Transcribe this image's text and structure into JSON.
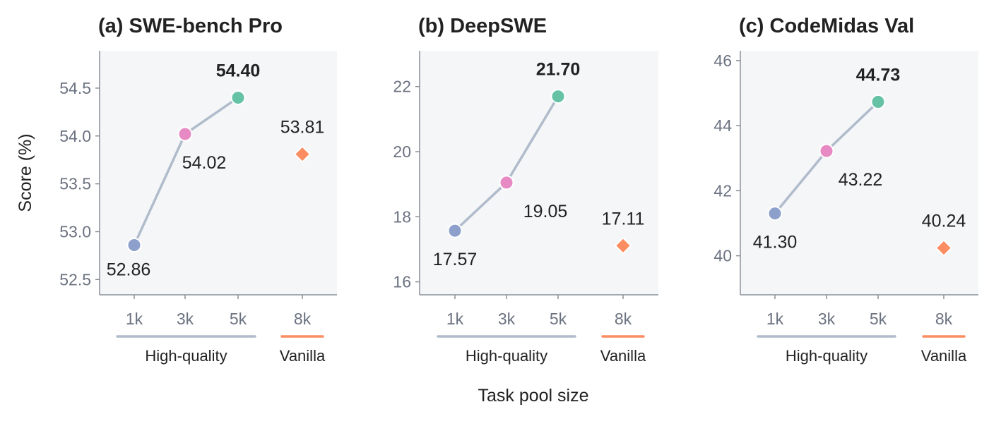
{
  "figure": {
    "ylabel": "Score (%)",
    "xlabel": "Task pool size"
  },
  "group_labels": {
    "high_quality": "High-quality",
    "vanilla": "Vanilla"
  },
  "colors": {
    "panel_bg": "#F5F6F8",
    "axis": "#8A9099",
    "tick_text": "#6B7280",
    "line": "#B0BCCB",
    "point_1k": "#8DA0CB",
    "point_3k": "#E78AC3",
    "point_5k": "#66C2A5",
    "vanilla": "#FC8D62",
    "bracket_hq": "#B0BCCB",
    "bracket_vanilla": "#FC8D62"
  },
  "chart_data": [
    {
      "type": "line",
      "title": "(a) SWE-bench Pro",
      "categories": [
        "1k",
        "3k",
        "5k",
        "8k"
      ],
      "series": [
        {
          "name": "High-quality",
          "x": [
            "1k",
            "3k",
            "5k"
          ],
          "values": [
            52.86,
            54.02,
            54.4
          ],
          "labels": [
            "52.86",
            "54.02",
            "54.40"
          ]
        },
        {
          "name": "Vanilla",
          "x": [
            "8k"
          ],
          "values": [
            53.81
          ],
          "labels": [
            "53.81"
          ]
        }
      ],
      "yticks": [
        52.5,
        53.0,
        53.5,
        54.0,
        54.5
      ],
      "ytick_labels": [
        "52.5",
        "53.0",
        "53.5",
        "54.0",
        "54.5"
      ],
      "ylim": [
        52.34,
        54.89
      ],
      "bold_label": "54.40",
      "grid": false
    },
    {
      "type": "line",
      "title": "(b) DeepSWE",
      "categories": [
        "1k",
        "3k",
        "5k",
        "8k"
      ],
      "series": [
        {
          "name": "High-quality",
          "x": [
            "1k",
            "3k",
            "5k"
          ],
          "values": [
            17.57,
            19.05,
            21.7
          ],
          "labels": [
            "17.57",
            "19.05",
            "21.70"
          ]
        },
        {
          "name": "Vanilla",
          "x": [
            "8k"
          ],
          "values": [
            17.11
          ],
          "labels": [
            "17.11"
          ]
        }
      ],
      "yticks": [
        16,
        18,
        20,
        22
      ],
      "ytick_labels": [
        "16",
        "18",
        "20",
        "22"
      ],
      "ylim": [
        15.6,
        23.1
      ],
      "bold_label": "21.70",
      "grid": false
    },
    {
      "type": "line",
      "title": "(c) CodeMidas Val",
      "categories": [
        "1k",
        "3k",
        "5k",
        "8k"
      ],
      "series": [
        {
          "name": "High-quality",
          "x": [
            "1k",
            "3k",
            "5k"
          ],
          "values": [
            41.3,
            43.22,
            44.73
          ],
          "labels": [
            "41.30",
            "43.22",
            "44.73"
          ]
        },
        {
          "name": "Vanilla",
          "x": [
            "8k"
          ],
          "values": [
            40.24
          ],
          "labels": [
            "40.24"
          ]
        }
      ],
      "yticks": [
        40,
        42,
        44,
        46
      ],
      "ytick_labels": [
        "40",
        "42",
        "44",
        "46"
      ],
      "ylim": [
        38.8,
        46.3
      ],
      "bold_label": "44.73",
      "grid": false
    }
  ]
}
